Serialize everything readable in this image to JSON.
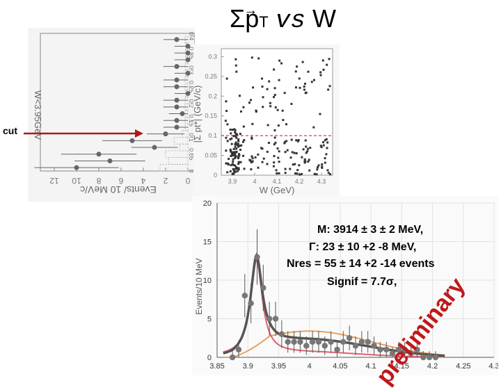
{
  "title": {
    "sigma": "Σ",
    "p": "p",
    "sub": "T",
    "vs": "vs",
    "w": "W"
  },
  "cut_label": "cut",
  "preliminary": "preliminary",
  "fit_results": {
    "line1": "M: 3914 ± 3 ± 2 MeV,",
    "line2": "Γ: 23 ± 10 +2 -8 MeV,",
    "line3": "Nres = 55 ± 14 +2 -14 events",
    "line4": "Signif = 7.7σ,"
  },
  "colors": {
    "cut": "#b01818",
    "preliminary": "#c01818",
    "total_fit": "#555555",
    "signal": "#e06070",
    "background": "#e8a060",
    "grid": "#dddddd"
  },
  "chart_data": [
    {
      "type": "histogram",
      "orientation": "rotated",
      "ylabel": "W<3.95GeV",
      "xlabel": "Events/ 10 MeV/c",
      "tick_labels_counts": [
        "12",
        "10",
        "8",
        "6",
        "4",
        "2",
        "0"
      ],
      "tick_labels_pt": [
        "0",
        "0.05",
        "0.1",
        "0.15",
        "0.2",
        "0.25",
        "0.3",
        "0.35",
        "0.4"
      ],
      "pt": [
        0.01,
        0.03,
        0.05,
        0.07,
        0.09,
        0.11,
        0.13,
        0.15,
        0.17,
        0.19,
        0.21,
        0.23,
        0.25,
        0.27,
        0.29,
        0.31,
        0.33,
        0.35,
        0.37,
        0.39
      ],
      "counts": [
        10,
        7,
        8,
        3,
        5,
        2,
        1,
        1,
        0.5,
        1,
        1,
        0,
        1,
        1,
        0,
        1,
        0,
        0,
        0,
        1
      ],
      "cut_value": 0.1
    },
    {
      "type": "scatter",
      "xlabel": "W (GeV)",
      "ylabel": "|Σ pt*| (GeV/c)",
      "x_tick_labels": [
        "3.9",
        "4",
        "4.1",
        "4.2",
        "4.3"
      ],
      "y_tick_labels": [
        "0",
        "0.05",
        "0.1",
        "0.15",
        "0.2",
        "0.25",
        "0.3"
      ],
      "xlim": [
        3.85,
        4.35
      ],
      "ylim": [
        0,
        0.32
      ],
      "cut_value": 0.1,
      "n_points": 260
    },
    {
      "type": "line",
      "xlabel": "",
      "ylabel": "Events/10 MeV",
      "x_tick_labels": [
        "3.85",
        "3.9",
        "3.95",
        "4",
        "4.05",
        "4.1",
        "4.15",
        "4.2",
        "4.25",
        "4.3"
      ],
      "y_tick_labels": [
        "0",
        "5",
        "10",
        "15",
        "20"
      ],
      "xlim": [
        3.85,
        4.3
      ],
      "ylim": [
        0,
        20
      ],
      "data_x": [
        3.875,
        3.885,
        3.895,
        3.905,
        3.915,
        3.925,
        3.935,
        3.945,
        3.955,
        3.965,
        3.975,
        3.985,
        3.995,
        4.005,
        4.015,
        4.025,
        4.035,
        4.045,
        4.055,
        4.065,
        4.075,
        4.085,
        4.095,
        4.105,
        4.115,
        4.125,
        4.135,
        4.145,
        4.155,
        4.165,
        4.175,
        4.185,
        4.195,
        4.205
      ],
      "data_y": [
        0,
        1,
        8,
        7,
        13,
        9,
        5,
        5,
        3,
        2,
        2,
        2,
        1.5,
        2,
        2,
        1.5,
        2,
        1,
        2,
        2.5,
        1.5,
        2,
        2,
        1.5,
        1,
        1,
        0.5,
        1,
        1,
        0.5,
        1,
        0,
        0,
        0
      ],
      "data_err": [
        0.8,
        1.2,
        2.8,
        2.6,
        3.6,
        3.0,
        2.2,
        2.2,
        1.8,
        1.4,
        1.4,
        1.4,
        1.2,
        1.4,
        1.4,
        1.2,
        1.4,
        1.0,
        1.4,
        1.6,
        1.2,
        1.4,
        1.4,
        1.2,
        1.0,
        1.0,
        0.8,
        1.0,
        1.0,
        0.8,
        1.0,
        0.8,
        0.8,
        0.8
      ],
      "series": [
        {
          "name": "total fit",
          "mass": 3.914,
          "width": 0.023
        },
        {
          "name": "signal",
          "mass": 3.914,
          "width": 0.023
        },
        {
          "name": "background"
        }
      ]
    }
  ]
}
